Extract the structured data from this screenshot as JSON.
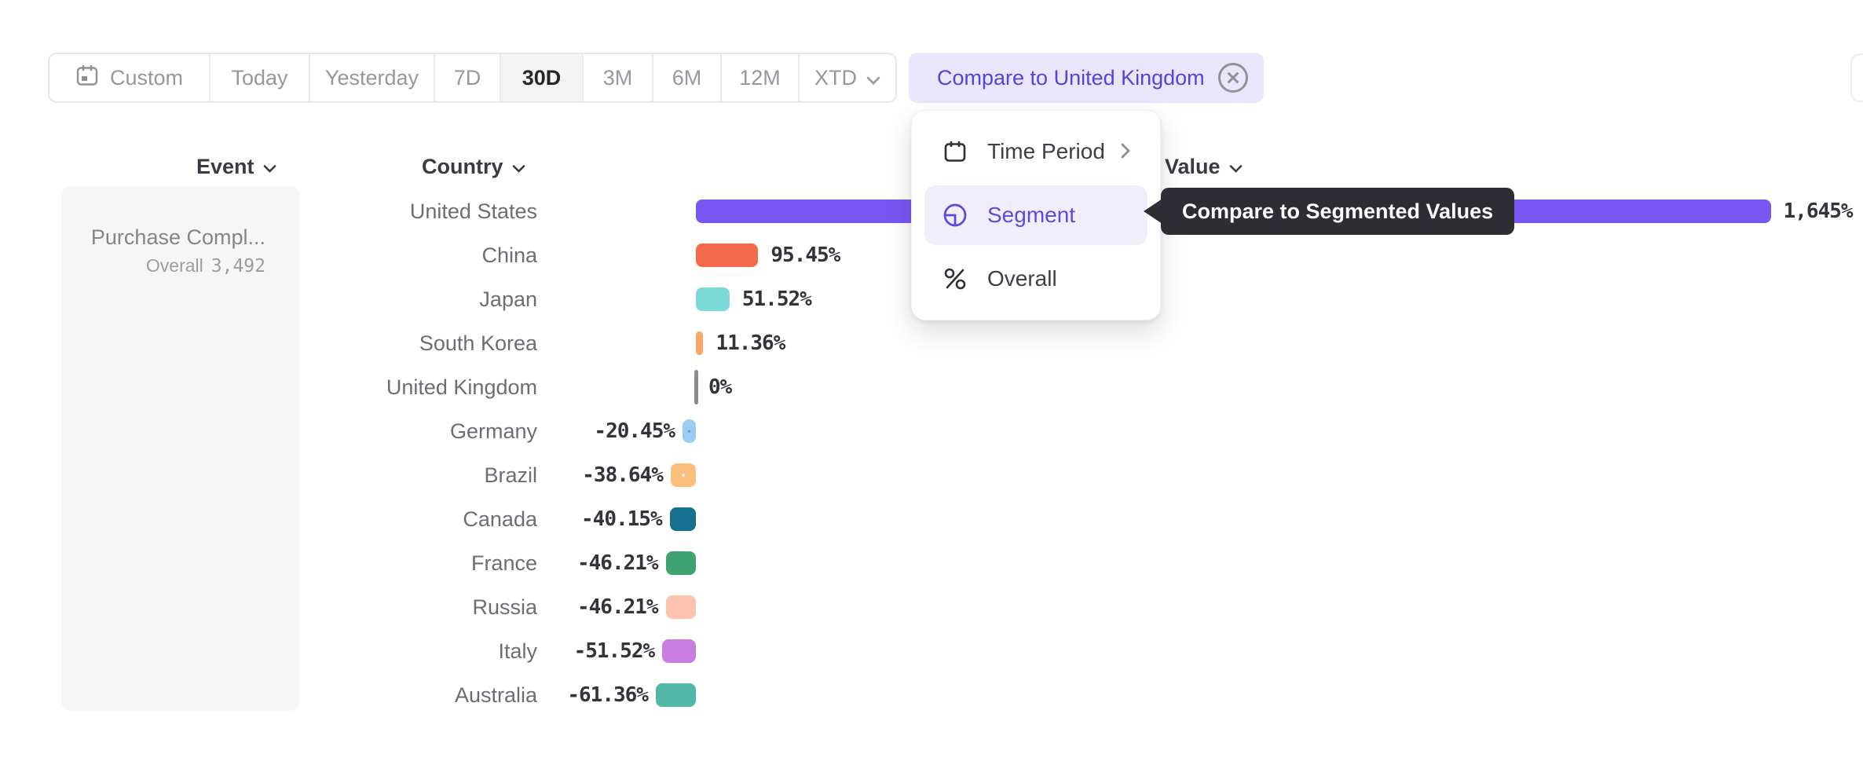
{
  "toolbar": {
    "custom_label": "Custom",
    "presets": [
      "Today",
      "Yesterday",
      "7D",
      "30D",
      "3M",
      "6M",
      "12M"
    ],
    "active_preset": "30D",
    "xtd_label": "XTD"
  },
  "compare_chip": {
    "label": "Compare to United Kingdom"
  },
  "columns": {
    "event": "Event",
    "country": "Country",
    "value": "Value"
  },
  "event_card": {
    "event_name": "Purchase Compl...",
    "overall_label": "Overall",
    "overall_value": "3,492"
  },
  "menu": {
    "items": [
      {
        "label": "Time Period",
        "icon": "calendar-icon",
        "has_submenu": true,
        "active": false
      },
      {
        "label": "Segment",
        "icon": "segment-icon",
        "has_submenu": false,
        "active": true
      },
      {
        "label": "Overall",
        "icon": "percent-icon",
        "has_submenu": false,
        "active": false
      }
    ]
  },
  "tooltip": {
    "text": "Compare to Segmented Values"
  },
  "chart_data": {
    "type": "bar",
    "orientation": "horizontal",
    "title": "",
    "xlabel": "",
    "ylabel": "",
    "baseline": 0,
    "xlim": [
      -100,
      1790
    ],
    "categories": [
      "United States",
      "China",
      "Japan",
      "South Korea",
      "United Kingdom",
      "Germany",
      "Brazil",
      "Canada",
      "France",
      "Russia",
      "Italy",
      "Australia"
    ],
    "values": [
      1645,
      95.45,
      51.52,
      11.36,
      0,
      -20.45,
      -38.64,
      -40.15,
      -46.21,
      -46.21,
      -51.52,
      -61.36
    ],
    "value_labels": [
      "1,645%",
      "95.45%",
      "51.52%",
      "11.36%",
      "0%",
      "-20.45%",
      "-38.64%",
      "-40.15%",
      "-46.21%",
      "-46.21%",
      "-51.52%",
      "-61.36%"
    ],
    "bar_colors": [
      "#7856f4",
      "#f4694b",
      "#7bd9d7",
      "#f8a862",
      "#8a8a8f",
      "#9ccdf0",
      "#fabf7d",
      "#17708f",
      "#3ea371",
      "#fcc4b0",
      "#c77ee0",
      "#52b7a7"
    ],
    "patterned": [
      false,
      false,
      false,
      false,
      false,
      true,
      true,
      false,
      false,
      false,
      false,
      false
    ],
    "pattern_dot_colors": [
      "",
      "",
      "",
      "",
      "",
      "#5fa8df",
      "#ffffff",
      "",
      "",
      "",
      "",
      ""
    ]
  },
  "colors": {
    "accent_purple": "#7856f4",
    "chip_bg": "#e9e6fb",
    "chip_text": "#5246d6",
    "menu_active_bg": "#f1eefc",
    "menu_active_text": "#5b4ae0",
    "tooltip_bg": "#2e2d33"
  }
}
